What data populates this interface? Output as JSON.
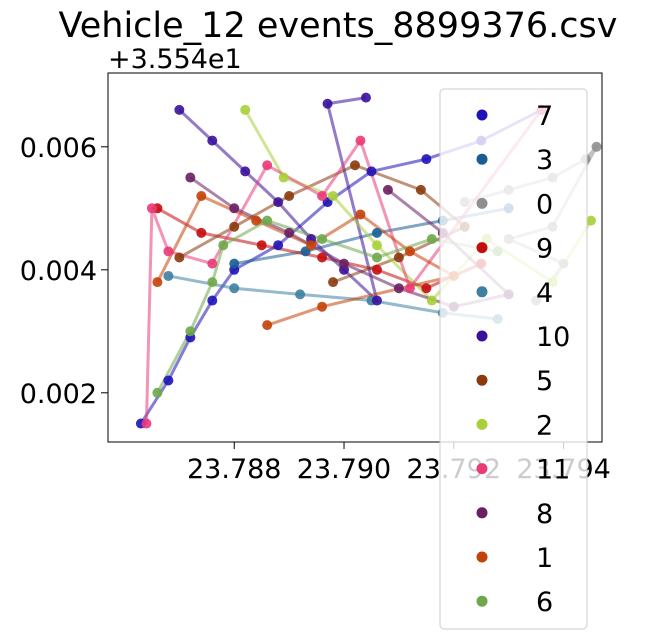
{
  "chart_data": {
    "type": "scatter",
    "title": "Vehicle_12 events_8899376.csv",
    "y_offset_label": "+3.554e1",
    "xlim": [
      23.7857,
      23.7947
    ],
    "ylim": [
      0.0012,
      0.0072
    ],
    "x_ticks": [
      {
        "value": 23.788,
        "label": "23.788"
      },
      {
        "value": 23.79,
        "label": "23.790"
      },
      {
        "value": 23.792,
        "label": "23.792"
      },
      {
        "value": 23.794,
        "label": "23.794"
      }
    ],
    "y_ticks": [
      {
        "value": 0.002,
        "label": "0.002"
      },
      {
        "value": 0.004,
        "label": "0.004"
      },
      {
        "value": 0.006,
        "label": "0.006"
      }
    ],
    "legend_position": "right",
    "series": [
      {
        "name": "7",
        "color": "#1f12b8",
        "values": [
          [
            23.7863,
            0.0015
          ],
          [
            23.7868,
            0.0022
          ],
          [
            23.7872,
            0.0029
          ],
          [
            23.7876,
            0.0035
          ],
          [
            23.788,
            0.004
          ],
          [
            23.7888,
            0.0044
          ],
          [
            23.7897,
            0.0051
          ],
          [
            23.7905,
            0.0056
          ],
          [
            23.7915,
            0.0058
          ],
          [
            23.7925,
            0.0061
          ],
          [
            23.7936,
            0.0066
          ]
        ]
      },
      {
        "name": "3",
        "color": "#1a5d94",
        "values": [
          [
            23.788,
            0.0041
          ],
          [
            23.7893,
            0.0043
          ],
          [
            23.7906,
            0.0046
          ],
          [
            23.7918,
            0.0048
          ],
          [
            23.793,
            0.005
          ]
        ]
      },
      {
        "name": "0",
        "color": "#8f8f8f",
        "values": [
          [
            23.7922,
            0.0051
          ],
          [
            23.793,
            0.0053
          ],
          [
            23.7938,
            0.0055
          ],
          [
            23.7944,
            0.0058
          ],
          [
            23.7946,
            0.006
          ],
          [
            23.7938,
            0.0047
          ],
          [
            23.793,
            0.0045
          ],
          [
            23.794,
            0.0041
          ],
          [
            23.7935,
            0.0035
          ]
        ]
      },
      {
        "name": "9",
        "color": "#c40c0c",
        "values": [
          [
            23.7866,
            0.005
          ],
          [
            23.7874,
            0.0046
          ],
          [
            23.7885,
            0.0044
          ],
          [
            23.7896,
            0.0042
          ],
          [
            23.7906,
            0.004
          ],
          [
            23.7915,
            0.0037
          ],
          [
            23.7925,
            0.0041
          ]
        ]
      },
      {
        "name": "4",
        "color": "#3f7fa0",
        "values": [
          [
            23.7868,
            0.0039
          ],
          [
            23.788,
            0.0037
          ],
          [
            23.7892,
            0.0036
          ],
          [
            23.7905,
            0.0035
          ],
          [
            23.7918,
            0.0033
          ],
          [
            23.7928,
            0.0032
          ]
        ]
      },
      {
        "name": "10",
        "color": "#3a0f9a",
        "values": [
          [
            23.787,
            0.0066
          ],
          [
            23.7876,
            0.0061
          ],
          [
            23.7882,
            0.0056
          ],
          [
            23.7888,
            0.0051
          ],
          [
            23.7894,
            0.0045
          ],
          [
            23.79,
            0.004
          ],
          [
            23.7906,
            0.0035
          ],
          [
            23.7897,
            0.0067
          ],
          [
            23.7904,
            0.0068
          ]
        ]
      },
      {
        "name": "5",
        "color": "#8a3a0c",
        "values": [
          [
            23.787,
            0.0042
          ],
          [
            23.788,
            0.0047
          ],
          [
            23.789,
            0.0052
          ],
          [
            23.7902,
            0.0057
          ],
          [
            23.7914,
            0.0053
          ],
          [
            23.7922,
            0.0047
          ],
          [
            23.791,
            0.0042
          ],
          [
            23.7898,
            0.0038
          ]
        ]
      },
      {
        "name": "2",
        "color": "#a9cf3a",
        "values": [
          [
            23.7882,
            0.0066
          ],
          [
            23.7889,
            0.0055
          ],
          [
            23.7898,
            0.0052
          ],
          [
            23.7906,
            0.0044
          ],
          [
            23.7916,
            0.0035
          ],
          [
            23.7926,
            0.0045
          ],
          [
            23.7938,
            0.0038
          ],
          [
            23.7945,
            0.0048
          ]
        ]
      },
      {
        "name": "11",
        "color": "#ea3a78",
        "values": [
          [
            23.7864,
            0.0015
          ],
          [
            23.7865,
            0.005
          ],
          [
            23.7868,
            0.0043
          ],
          [
            23.7876,
            0.0041
          ],
          [
            23.7886,
            0.0057
          ],
          [
            23.7896,
            0.0052
          ],
          [
            23.7903,
            0.0061
          ],
          [
            23.7912,
            0.0037
          ],
          [
            23.7936,
            0.0066
          ]
        ]
      },
      {
        "name": "8",
        "color": "#6a1f62",
        "values": [
          [
            23.7872,
            0.0055
          ],
          [
            23.788,
            0.005
          ],
          [
            23.789,
            0.0046
          ],
          [
            23.79,
            0.0041
          ],
          [
            23.791,
            0.0037
          ],
          [
            23.792,
            0.0034
          ],
          [
            23.793,
            0.0036
          ],
          [
            23.7918,
            0.0046
          ],
          [
            23.7908,
            0.0053
          ]
        ]
      },
      {
        "name": "1",
        "color": "#c44108",
        "values": [
          [
            23.7866,
            0.0038
          ],
          [
            23.7874,
            0.0052
          ],
          [
            23.7884,
            0.0048
          ],
          [
            23.7894,
            0.0044
          ],
          [
            23.7903,
            0.0049
          ],
          [
            23.7912,
            0.0043
          ],
          [
            23.792,
            0.0039
          ],
          [
            23.7896,
            0.0034
          ],
          [
            23.7886,
            0.0031
          ]
        ]
      },
      {
        "name": "6",
        "color": "#6ea84a",
        "values": [
          [
            23.7866,
            0.002
          ],
          [
            23.7872,
            0.003
          ],
          [
            23.7876,
            0.0038
          ],
          [
            23.7878,
            0.0044
          ],
          [
            23.7886,
            0.0048
          ],
          [
            23.7896,
            0.0045
          ],
          [
            23.7906,
            0.0042
          ],
          [
            23.7916,
            0.0045
          ],
          [
            23.7928,
            0.0043
          ]
        ]
      }
    ]
  }
}
